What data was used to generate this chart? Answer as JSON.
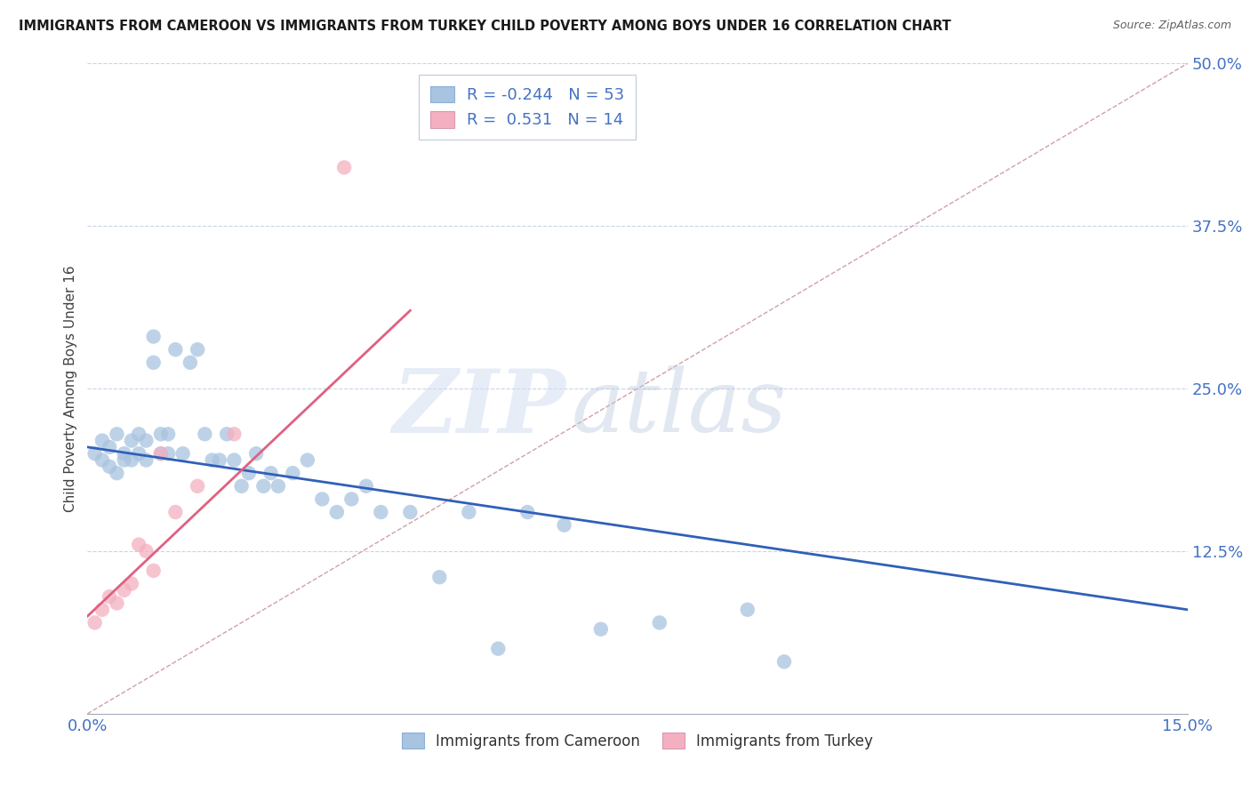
{
  "title": "IMMIGRANTS FROM CAMEROON VS IMMIGRANTS FROM TURKEY CHILD POVERTY AMONG BOYS UNDER 16 CORRELATION CHART",
  "source": "Source: ZipAtlas.com",
  "ylabel": "Child Poverty Among Boys Under 16",
  "xlim": [
    0.0,
    0.15
  ],
  "ylim": [
    0.0,
    0.5
  ],
  "xticks": [
    0.0,
    0.025,
    0.05,
    0.075,
    0.1,
    0.125,
    0.15
  ],
  "xticklabels": [
    "0.0%",
    "",
    "",
    "",
    "",
    "",
    "15.0%"
  ],
  "yticks": [
    0.0,
    0.125,
    0.25,
    0.375,
    0.5
  ],
  "yticklabels": [
    "",
    "12.5%",
    "25.0%",
    "37.5%",
    "50.0%"
  ],
  "cameroon_R": -0.244,
  "cameroon_N": 53,
  "turkey_R": 0.531,
  "turkey_N": 14,
  "cameroon_color": "#a8c4e0",
  "turkey_color": "#f4b0c0",
  "cameroon_line_color": "#3060b8",
  "turkey_line_color": "#e06080",
  "ref_line_color": "#d0a0a8",
  "background_color": "#ffffff",
  "grid_color": "#c8d4e8",
  "cameroon_x": [
    0.001,
    0.002,
    0.002,
    0.003,
    0.003,
    0.004,
    0.004,
    0.005,
    0.005,
    0.006,
    0.006,
    0.007,
    0.007,
    0.008,
    0.008,
    0.009,
    0.009,
    0.01,
    0.01,
    0.011,
    0.011,
    0.012,
    0.013,
    0.014,
    0.015,
    0.016,
    0.017,
    0.018,
    0.019,
    0.02,
    0.021,
    0.022,
    0.023,
    0.024,
    0.025,
    0.026,
    0.028,
    0.03,
    0.032,
    0.034,
    0.036,
    0.038,
    0.04,
    0.044,
    0.048,
    0.052,
    0.056,
    0.06,
    0.065,
    0.07,
    0.078,
    0.09,
    0.095
  ],
  "cameroon_y": [
    0.2,
    0.195,
    0.21,
    0.19,
    0.205,
    0.215,
    0.185,
    0.195,
    0.2,
    0.21,
    0.195,
    0.2,
    0.215,
    0.21,
    0.195,
    0.27,
    0.29,
    0.215,
    0.2,
    0.215,
    0.2,
    0.28,
    0.2,
    0.27,
    0.28,
    0.215,
    0.195,
    0.195,
    0.215,
    0.195,
    0.175,
    0.185,
    0.2,
    0.175,
    0.185,
    0.175,
    0.185,
    0.195,
    0.165,
    0.155,
    0.165,
    0.175,
    0.155,
    0.155,
    0.105,
    0.155,
    0.05,
    0.155,
    0.145,
    0.065,
    0.07,
    0.08,
    0.04
  ],
  "turkey_x": [
    0.001,
    0.002,
    0.003,
    0.004,
    0.005,
    0.006,
    0.007,
    0.008,
    0.009,
    0.01,
    0.012,
    0.015,
    0.02,
    0.035
  ],
  "turkey_y": [
    0.07,
    0.08,
    0.09,
    0.085,
    0.095,
    0.1,
    0.13,
    0.125,
    0.11,
    0.2,
    0.155,
    0.175,
    0.215,
    0.42
  ],
  "cam_trend_x": [
    0.0,
    0.15
  ],
  "cam_trend_y": [
    0.205,
    0.08
  ],
  "tur_trend_x": [
    0.0,
    0.044
  ],
  "tur_trend_y": [
    0.075,
    0.31
  ]
}
